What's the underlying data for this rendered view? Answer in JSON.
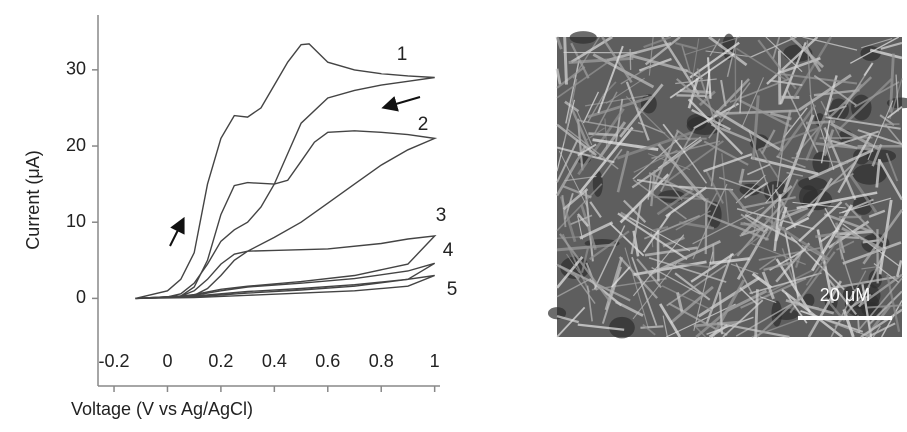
{
  "chart_data": {
    "type": "line",
    "x_label": "Voltage (V vs Ag/AgCl)",
    "y_label": "Current (μA)",
    "xlim": [
      -0.26,
      1.02
    ],
    "ylim": [
      -11.5,
      37.2
    ],
    "xticks": [
      -0.2,
      0,
      0.2,
      0.4,
      0.6,
      0.8,
      1
    ],
    "yticks": [
      0,
      10,
      20,
      30
    ],
    "series": [
      {
        "name": "1",
        "color": "#444444",
        "x": [
          -0.12,
          0,
          0.05,
          0.1,
          0.15,
          0.2,
          0.25,
          0.3,
          0.35,
          0.4,
          0.45,
          0.5,
          0.53,
          0.6,
          0.7,
          0.8,
          0.9,
          1,
          0.9,
          0.8,
          0.7,
          0.6,
          0.5,
          0.45,
          0.4,
          0.35,
          0.3,
          0.25,
          0.2,
          0.15,
          0.1,
          0.05,
          0,
          -0.12
        ],
        "values": [
          0,
          1,
          2.5,
          6,
          15,
          21,
          24,
          23.8,
          25,
          28,
          31,
          33.3,
          33.4,
          31,
          30,
          29.5,
          29.2,
          29,
          28.5,
          28,
          27.3,
          26.3,
          23,
          19,
          15,
          12,
          10,
          9,
          7.5,
          4.5,
          2,
          0.6,
          0.2,
          0
        ]
      },
      {
        "name": "2",
        "color": "#444444",
        "x": [
          -0.12,
          0.05,
          0.1,
          0.15,
          0.2,
          0.25,
          0.3,
          0.4,
          0.45,
          0.5,
          0.55,
          0.6,
          0.7,
          0.8,
          0.9,
          1,
          0.9,
          0.8,
          0.7,
          0.6,
          0.5,
          0.4,
          0.3,
          0.25,
          0.2,
          0.15,
          0.1,
          0,
          -0.12
        ],
        "values": [
          0,
          0.3,
          1.5,
          5,
          11,
          14.8,
          15.2,
          15,
          15.5,
          18,
          20.5,
          21.8,
          22,
          21.8,
          21.5,
          21,
          19.5,
          17.5,
          15,
          12.5,
          10,
          8,
          6.2,
          5,
          3,
          1.3,
          0.4,
          0.1,
          0
        ]
      },
      {
        "name": "3",
        "color": "#444444",
        "x": [
          -0.12,
          0.05,
          0.1,
          0.15,
          0.2,
          0.25,
          0.3,
          0.4,
          0.6,
          0.8,
          0.9,
          1,
          0.9,
          0.7,
          0.5,
          0.3,
          0.2,
          0.1,
          0,
          -0.12
        ],
        "values": [
          0,
          0.3,
          1,
          2.5,
          4.5,
          5.8,
          6.2,
          6.3,
          6.5,
          7.2,
          7.8,
          8.2,
          4.5,
          3,
          2.2,
          1.6,
          1.2,
          0.5,
          0.1,
          0
        ]
      },
      {
        "name": "4",
        "color": "#444444",
        "x": [
          -0.12,
          0.1,
          0.2,
          0.3,
          0.5,
          0.7,
          0.9,
          1,
          0.9,
          0.7,
          0.5,
          0.3,
          0.1,
          -0.12
        ],
        "values": [
          0,
          0.4,
          1,
          1.5,
          2,
          2.6,
          3.6,
          4.6,
          2.5,
          1.6,
          1.1,
          0.7,
          0.2,
          0
        ]
      },
      {
        "name": "5",
        "color": "#444444",
        "x": [
          -0.12,
          0.1,
          0.3,
          0.5,
          0.7,
          0.9,
          1,
          0.9,
          0.7,
          0.5,
          0.3,
          0.1,
          -0.12
        ],
        "values": [
          0,
          0.3,
          0.9,
          1.3,
          1.8,
          2.5,
          3,
          1.6,
          1,
          0.7,
          0.4,
          0.1,
          0
        ]
      }
    ]
  },
  "image": {
    "scale_bar_label": "20 μM"
  }
}
